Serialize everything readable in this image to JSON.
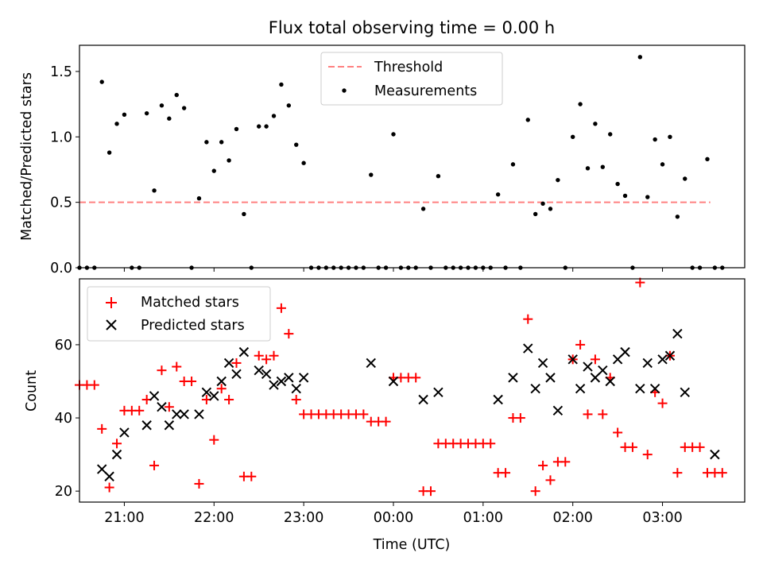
{
  "title": "Flux total observing time = 0.00 h",
  "colors": {
    "threshold": "#ff8080",
    "measurements": "#000000",
    "matched": "#ff0000",
    "predicted": "#000000"
  },
  "top": {
    "ylabel": "Matched/Predicted stars",
    "yticks": [
      "0.0",
      "0.5",
      "1.0",
      "1.5"
    ],
    "legend": {
      "threshold": "Threshold",
      "measurements": "Measurements"
    }
  },
  "bottom": {
    "ylabel": "Count",
    "xlabel": "Time (UTC)",
    "yticks": [
      "20",
      "40",
      "60"
    ],
    "legend": {
      "matched": "Matched stars",
      "predicted": "Predicted stars"
    }
  },
  "xticks": [
    "21:00",
    "22:00",
    "23:00",
    "00:00",
    "01:00",
    "02:00",
    "03:00"
  ],
  "chart_data": [
    {
      "type": "scatter",
      "title": "Flux total observing time = 0.00 h",
      "ylabel": "Matched/Predicted stars",
      "ylim": [
        0,
        1.7
      ],
      "xlim": [
        "20:30",
        "03:55"
      ],
      "legend_position": "top-center",
      "threshold": {
        "name": "Threshold",
        "y": 0.5,
        "x_range": [
          "20:30",
          "03:32"
        ]
      },
      "series": [
        {
          "name": "Measurements",
          "points": [
            [
              "20:30",
              0.0
            ],
            [
              "20:35",
              0.0
            ],
            [
              "20:40",
              0.0
            ],
            [
              "20:45",
              1.42
            ],
            [
              "20:50",
              0.88
            ],
            [
              "20:55",
              1.1
            ],
            [
              "21:00",
              1.17
            ],
            [
              "21:05",
              0.0
            ],
            [
              "21:10",
              0.0
            ],
            [
              "21:15",
              1.18
            ],
            [
              "21:20",
              0.59
            ],
            [
              "21:25",
              1.24
            ],
            [
              "21:30",
              1.14
            ],
            [
              "21:35",
              1.32
            ],
            [
              "21:40",
              1.22
            ],
            [
              "21:45",
              0.0
            ],
            [
              "21:50",
              0.53
            ],
            [
              "21:55",
              0.96
            ],
            [
              "22:00",
              0.74
            ],
            [
              "22:05",
              0.96
            ],
            [
              "22:10",
              0.82
            ],
            [
              "22:15",
              1.06
            ],
            [
              "22:20",
              0.41
            ],
            [
              "22:25",
              0.0
            ],
            [
              "22:30",
              1.08
            ],
            [
              "22:35",
              1.08
            ],
            [
              "22:40",
              1.16
            ],
            [
              "22:45",
              1.4
            ],
            [
              "22:50",
              1.24
            ],
            [
              "22:55",
              0.94
            ],
            [
              "23:00",
              0.8
            ],
            [
              "23:05",
              0.0
            ],
            [
              "23:10",
              0.0
            ],
            [
              "23:15",
              0.0
            ],
            [
              "23:20",
              0.0
            ],
            [
              "23:25",
              0.0
            ],
            [
              "23:30",
              0.0
            ],
            [
              "23:35",
              0.0
            ],
            [
              "23:40",
              0.0
            ],
            [
              "23:45",
              0.71
            ],
            [
              "23:50",
              0.0
            ],
            [
              "23:55",
              0.0
            ],
            [
              "00:00",
              1.02
            ],
            [
              "00:05",
              0.0
            ],
            [
              "00:10",
              0.0
            ],
            [
              "00:15",
              0.0
            ],
            [
              "00:20",
              0.45
            ],
            [
              "00:25",
              0.0
            ],
            [
              "00:30",
              0.7
            ],
            [
              "00:35",
              0.0
            ],
            [
              "00:40",
              0.0
            ],
            [
              "00:45",
              0.0
            ],
            [
              "00:50",
              0.0
            ],
            [
              "00:55",
              0.0
            ],
            [
              "01:00",
              0.0
            ],
            [
              "01:05",
              0.0
            ],
            [
              "01:10",
              0.56
            ],
            [
              "01:15",
              0.0
            ],
            [
              "01:20",
              0.79
            ],
            [
              "01:25",
              0.0
            ],
            [
              "01:30",
              1.13
            ],
            [
              "01:35",
              0.41
            ],
            [
              "01:40",
              0.49
            ],
            [
              "01:45",
              0.45
            ],
            [
              "01:50",
              0.67
            ],
            [
              "01:55",
              0.0
            ],
            [
              "02:00",
              1.0
            ],
            [
              "02:05",
              1.25
            ],
            [
              "02:10",
              0.76
            ],
            [
              "02:15",
              1.1
            ],
            [
              "02:20",
              0.77
            ],
            [
              "02:25",
              1.02
            ],
            [
              "02:30",
              0.64
            ],
            [
              "02:35",
              0.55
            ],
            [
              "02:40",
              0.0
            ],
            [
              "02:45",
              1.61
            ],
            [
              "02:50",
              0.54
            ],
            [
              "02:55",
              0.98
            ],
            [
              "03:00",
              0.79
            ],
            [
              "03:05",
              1.0
            ],
            [
              "03:10",
              0.39
            ],
            [
              "03:15",
              0.68
            ],
            [
              "03:20",
              0.0
            ],
            [
              "03:25",
              0.0
            ],
            [
              "03:30",
              0.83
            ],
            [
              "03:35",
              0.0
            ],
            [
              "03:40",
              0.0
            ]
          ]
        }
      ]
    },
    {
      "type": "scatter",
      "xlabel": "Time (UTC)",
      "ylabel": "Count",
      "ylim": [
        17,
        78
      ],
      "xlim": [
        "20:30",
        "03:55"
      ],
      "legend_position": "top-left",
      "series": [
        {
          "name": "Matched stars",
          "points": [
            [
              "20:30",
              49
            ],
            [
              "20:35",
              49
            ],
            [
              "20:40",
              49
            ],
            [
              "20:45",
              37
            ],
            [
              "20:50",
              21
            ],
            [
              "20:55",
              33
            ],
            [
              "21:00",
              42
            ],
            [
              "21:05",
              42
            ],
            [
              "21:10",
              42
            ],
            [
              "21:15",
              45
            ],
            [
              "21:20",
              27
            ],
            [
              "21:25",
              53
            ],
            [
              "21:30",
              43
            ],
            [
              "21:35",
              54
            ],
            [
              "21:40",
              50
            ],
            [
              "21:45",
              50
            ],
            [
              "21:50",
              22
            ],
            [
              "21:55",
              45
            ],
            [
              "22:00",
              34
            ],
            [
              "22:05",
              48
            ],
            [
              "22:10",
              45
            ],
            [
              "22:15",
              55
            ],
            [
              "22:20",
              24
            ],
            [
              "22:25",
              24
            ],
            [
              "22:30",
              57
            ],
            [
              "22:35",
              56
            ],
            [
              "22:40",
              57
            ],
            [
              "22:45",
              70
            ],
            [
              "22:50",
              63
            ],
            [
              "22:55",
              45
            ],
            [
              "23:00",
              41
            ],
            [
              "23:05",
              41
            ],
            [
              "23:10",
              41
            ],
            [
              "23:15",
              41
            ],
            [
              "23:20",
              41
            ],
            [
              "23:25",
              41
            ],
            [
              "23:30",
              41
            ],
            [
              "23:35",
              41
            ],
            [
              "23:40",
              41
            ],
            [
              "23:45",
              39
            ],
            [
              "23:50",
              39
            ],
            [
              "23:55",
              39
            ],
            [
              "00:00",
              51
            ],
            [
              "00:05",
              51
            ],
            [
              "00:10",
              51
            ],
            [
              "00:15",
              51
            ],
            [
              "00:20",
              20
            ],
            [
              "00:25",
              20
            ],
            [
              "00:30",
              33
            ],
            [
              "00:35",
              33
            ],
            [
              "00:40",
              33
            ],
            [
              "00:45",
              33
            ],
            [
              "00:50",
              33
            ],
            [
              "00:55",
              33
            ],
            [
              "01:00",
              33
            ],
            [
              "01:05",
              33
            ],
            [
              "01:10",
              25
            ],
            [
              "01:15",
              25
            ],
            [
              "01:20",
              40
            ],
            [
              "01:25",
              40
            ],
            [
              "01:30",
              67
            ],
            [
              "01:35",
              20
            ],
            [
              "01:40",
              27
            ],
            [
              "01:45",
              23
            ],
            [
              "01:50",
              28
            ],
            [
              "01:55",
              28
            ],
            [
              "02:00",
              56
            ],
            [
              "02:05",
              60
            ],
            [
              "02:10",
              41
            ],
            [
              "02:15",
              56
            ],
            [
              "02:20",
              41
            ],
            [
              "02:25",
              51
            ],
            [
              "02:30",
              36
            ],
            [
              "02:35",
              32
            ],
            [
              "02:40",
              32
            ],
            [
              "02:45",
              77
            ],
            [
              "02:50",
              30
            ],
            [
              "02:55",
              47
            ],
            [
              "03:00",
              44
            ],
            [
              "03:05",
              57
            ],
            [
              "03:10",
              25
            ],
            [
              "03:15",
              32
            ],
            [
              "03:20",
              32
            ],
            [
              "03:25",
              32
            ],
            [
              "03:30",
              25
            ],
            [
              "03:35",
              25
            ],
            [
              "03:40",
              25
            ]
          ]
        },
        {
          "name": "Predicted stars",
          "points": [
            [
              "20:45",
              26
            ],
            [
              "20:50",
              24
            ],
            [
              "20:55",
              30
            ],
            [
              "21:00",
              36
            ],
            [
              "21:15",
              38
            ],
            [
              "21:20",
              46
            ],
            [
              "21:25",
              43
            ],
            [
              "21:30",
              38
            ],
            [
              "21:35",
              41
            ],
            [
              "21:40",
              41
            ],
            [
              "21:50",
              41
            ],
            [
              "21:55",
              47
            ],
            [
              "22:00",
              46
            ],
            [
              "22:05",
              50
            ],
            [
              "22:10",
              55
            ],
            [
              "22:15",
              52
            ],
            [
              "22:20",
              58
            ],
            [
              "22:30",
              53
            ],
            [
              "22:35",
              52
            ],
            [
              "22:40",
              49
            ],
            [
              "22:45",
              50
            ],
            [
              "22:50",
              51
            ],
            [
              "22:55",
              48
            ],
            [
              "23:00",
              51
            ],
            [
              "23:45",
              55
            ],
            [
              "00:00",
              50
            ],
            [
              "00:20",
              45
            ],
            [
              "00:30",
              47
            ],
            [
              "01:10",
              45
            ],
            [
              "01:20",
              51
            ],
            [
              "01:30",
              59
            ],
            [
              "01:35",
              48
            ],
            [
              "01:40",
              55
            ],
            [
              "01:45",
              51
            ],
            [
              "01:50",
              42
            ],
            [
              "02:00",
              56
            ],
            [
              "02:05",
              48
            ],
            [
              "02:10",
              54
            ],
            [
              "02:15",
              51
            ],
            [
              "02:20",
              53
            ],
            [
              "02:25",
              50
            ],
            [
              "02:30",
              56
            ],
            [
              "02:35",
              58
            ],
            [
              "02:45",
              48
            ],
            [
              "02:50",
              55
            ],
            [
              "02:55",
              48
            ],
            [
              "03:00",
              56
            ],
            [
              "03:05",
              57
            ],
            [
              "03:10",
              63
            ],
            [
              "03:15",
              47
            ],
            [
              "03:35",
              30
            ]
          ]
        }
      ]
    }
  ]
}
